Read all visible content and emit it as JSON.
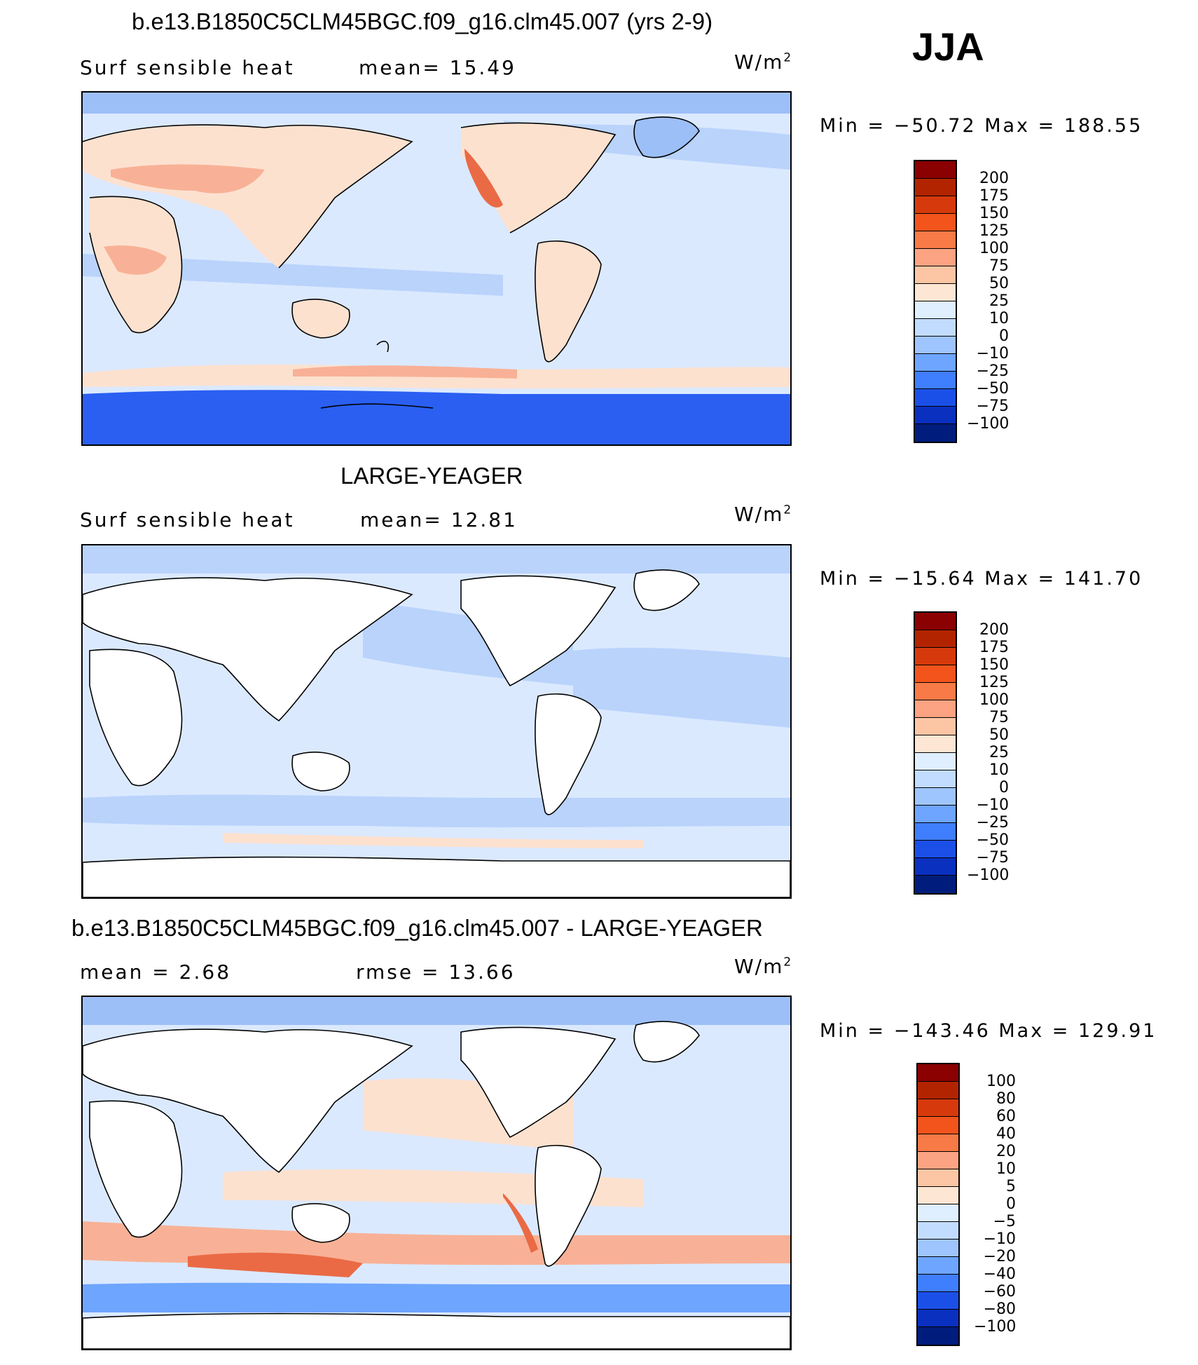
{
  "season": "JJA",
  "units": "W/m",
  "units_exp": "2",
  "panels": [
    {
      "title": "b.e13.B1850C5CLM45BGC.f09_g16.clm45.007 (yrs 2-9)",
      "left_label": "Surf  sensible  heat",
      "mid_label": "mean=   15.49",
      "minmax": "Min  =  −50.72  Max  =  188.55"
    },
    {
      "title": "LARGE-YEAGER",
      "left_label": "Surf  sensible  heat",
      "mid_label": "mean=   12.81",
      "minmax": "Min  =  −15.64  Max  =  141.70"
    },
    {
      "title": "b.e13.B1850C5CLM45BGC.f09_g16.clm45.007 - LARGE-YEAGER",
      "left_label": "mean  =     2.68",
      "mid_label": "rmse  =    13.66",
      "minmax": "Min  =  −143.46  Max  =  129.91"
    }
  ],
  "colorbar_abs": {
    "labels": [
      "200",
      "175",
      "150",
      "125",
      "100",
      "75",
      "50",
      "25",
      "10",
      "0",
      "−10",
      "−25",
      "−50",
      "−75",
      "−100"
    ],
    "colors": [
      "#8b0000",
      "#b22400",
      "#d63a0c",
      "#f2541c",
      "#f87a47",
      "#fba382",
      "#fcc6a4",
      "#fde6d3",
      "#dfefff",
      "#c2dcff",
      "#9fc5ff",
      "#6ea5ff",
      "#3f7efd",
      "#1b50e8",
      "#0a30c0",
      "#001d7d"
    ]
  },
  "colorbar_diff": {
    "labels": [
      "100",
      "80",
      "60",
      "40",
      "20",
      "10",
      "5",
      "0",
      "−5",
      "−10",
      "−20",
      "−40",
      "−60",
      "−80",
      "−100"
    ],
    "colors": [
      "#8b0000",
      "#b22400",
      "#d63a0c",
      "#f2541c",
      "#f87a47",
      "#fba382",
      "#fcc6a4",
      "#fde6d3",
      "#dfefff",
      "#c2dcff",
      "#9fc5ff",
      "#6ea5ff",
      "#3f7efd",
      "#1b50e8",
      "#0a30c0",
      "#001d7d"
    ]
  },
  "map_colors": {
    "ocean_base": "#dbe9ff",
    "ocean_mid": "#b9d3fb",
    "ocean_cool": "#9dbff8",
    "ice_dark": "#2a5ff2",
    "warm_light": "#fde1cf",
    "warm_mid": "#f8b196",
    "warm_strong": "#ea6a45",
    "land_white": "#ffffff",
    "coast": "#000000"
  }
}
